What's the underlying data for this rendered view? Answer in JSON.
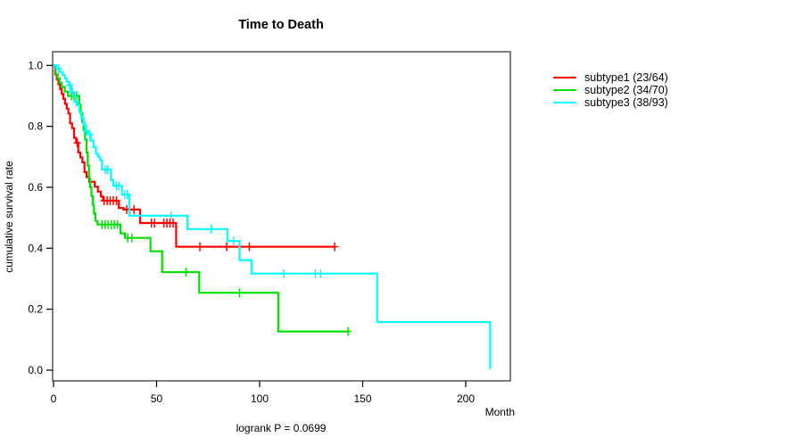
{
  "title": "Time to Death",
  "x_axis": {
    "label": "Month",
    "tick_labels": [
      "0",
      "50",
      "100",
      "150",
      "200"
    ],
    "tick_values": [
      0,
      50,
      100,
      150,
      200
    ]
  },
  "y_axis": {
    "label": "cumulative survival rate",
    "tick_labels": [
      "0.0",
      "0.2",
      "0.4",
      "0.6",
      "0.8",
      "1.0"
    ],
    "tick_values": [
      0,
      0.2,
      0.4,
      0.6,
      0.8,
      1.0
    ]
  },
  "footer": "logrank P = 0.0699",
  "legend": [
    {
      "label": "subtype1 (23/64)",
      "color": "#ff0000"
    },
    {
      "label": "subtype2 (34/70)",
      "color": "#00e100"
    },
    {
      "label": "subtype3 (38/93)",
      "color": "#00ffff"
    }
  ],
  "chart_data": {
    "type": "line",
    "variant": "kaplan-meier-step",
    "title": "Time to Death",
    "xlabel": "Month",
    "ylabel": "cumulative survival rate",
    "xlim": [
      0,
      221
    ],
    "ylim": [
      0,
      1.0
    ],
    "grid": false,
    "legend_position": "right-outside",
    "annotation": "logrank P = 0.0699",
    "series": [
      {
        "name": "subtype1 (23/64)",
        "color": "#ff0000",
        "steps": [
          [
            0,
            1.0
          ],
          [
            0.8,
            0.97
          ],
          [
            1.6,
            0.954
          ],
          [
            2.4,
            0.938
          ],
          [
            3.2,
            0.922
          ],
          [
            4,
            0.906
          ],
          [
            4.8,
            0.89
          ],
          [
            5.6,
            0.874
          ],
          [
            6.4,
            0.858
          ],
          [
            7.2,
            0.842
          ],
          [
            8,
            0.81
          ],
          [
            9,
            0.794
          ],
          [
            10,
            0.762
          ],
          [
            11,
            0.746
          ],
          [
            12,
            0.714
          ],
          [
            13,
            0.698
          ],
          [
            14,
            0.682
          ],
          [
            15,
            0.65
          ],
          [
            16,
            0.634
          ],
          [
            17.3,
            0.618
          ],
          [
            20,
            0.602
          ],
          [
            21.5,
            0.586
          ],
          [
            23,
            0.57
          ],
          [
            24,
            0.556
          ],
          [
            31.7,
            0.532
          ],
          [
            34,
            0.527
          ],
          [
            42,
            0.483
          ],
          [
            59.5,
            0.405
          ]
        ],
        "tail_end": 136.4,
        "censors": [
          [
            11.5,
            0.746
          ],
          [
            24.5,
            0.556
          ],
          [
            26,
            0.556
          ],
          [
            27.5,
            0.556
          ],
          [
            29,
            0.556
          ],
          [
            30.5,
            0.556
          ],
          [
            35.5,
            0.527
          ],
          [
            37,
            0.527
          ],
          [
            39,
            0.527
          ],
          [
            47.5,
            0.483
          ],
          [
            49,
            0.483
          ],
          [
            53.5,
            0.483
          ],
          [
            55,
            0.483
          ],
          [
            56.5,
            0.483
          ],
          [
            58,
            0.483
          ],
          [
            71,
            0.405
          ],
          [
            84,
            0.405
          ],
          [
            95,
            0.405
          ],
          [
            136.4,
            0.405
          ]
        ]
      },
      {
        "name": "subtype2 (34/70)",
        "color": "#00e100",
        "steps": [
          [
            0,
            1.0
          ],
          [
            1,
            0.971
          ],
          [
            2,
            0.957
          ],
          [
            3,
            0.943
          ],
          [
            4,
            0.929
          ],
          [
            5.5,
            0.914
          ],
          [
            7,
            0.9
          ],
          [
            12.5,
            0.871
          ],
          [
            13.2,
            0.843
          ],
          [
            13.9,
            0.814
          ],
          [
            14.6,
            0.786
          ],
          [
            15.3,
            0.757
          ],
          [
            16,
            0.714
          ],
          [
            16.6,
            0.671
          ],
          [
            17.2,
            0.629
          ],
          [
            17.8,
            0.6
          ],
          [
            18.4,
            0.571
          ],
          [
            19,
            0.543
          ],
          [
            19.6,
            0.514
          ],
          [
            20.3,
            0.49
          ],
          [
            21.3,
            0.478
          ],
          [
            32.5,
            0.449
          ],
          [
            34.6,
            0.434
          ],
          [
            47,
            0.39
          ],
          [
            52.7,
            0.322
          ],
          [
            70.7,
            0.254
          ],
          [
            109,
            0.127
          ]
        ],
        "tail_end": 142.9,
        "censors": [
          [
            8.7,
            0.9
          ],
          [
            10,
            0.9
          ],
          [
            11.2,
            0.9
          ],
          [
            23.5,
            0.478
          ],
          [
            25,
            0.478
          ],
          [
            26.5,
            0.478
          ],
          [
            28,
            0.478
          ],
          [
            29.5,
            0.478
          ],
          [
            31,
            0.478
          ],
          [
            36,
            0.434
          ],
          [
            38,
            0.434
          ],
          [
            64.2,
            0.322
          ],
          [
            90.2,
            0.254
          ],
          [
            142.9,
            0.127
          ]
        ]
      },
      {
        "name": "subtype3 (38/93)",
        "color": "#00ffff",
        "steps": [
          [
            0,
            1.0
          ],
          [
            1.5,
            0.989
          ],
          [
            3,
            0.978
          ],
          [
            4.5,
            0.968
          ],
          [
            5.5,
            0.957
          ],
          [
            6.5,
            0.946
          ],
          [
            7.5,
            0.935
          ],
          [
            8.5,
            0.913
          ],
          [
            9.5,
            0.902
          ],
          [
            10.5,
            0.88
          ],
          [
            11.5,
            0.87
          ],
          [
            12.5,
            0.848
          ],
          [
            13.5,
            0.827
          ],
          [
            14.5,
            0.806
          ],
          [
            15.5,
            0.785
          ],
          [
            16.5,
            0.774
          ],
          [
            18,
            0.753
          ],
          [
            19.5,
            0.732
          ],
          [
            20.5,
            0.71
          ],
          [
            21.5,
            0.7
          ],
          [
            22.5,
            0.689
          ],
          [
            23.5,
            0.658
          ],
          [
            27.8,
            0.624
          ],
          [
            29,
            0.605
          ],
          [
            33.2,
            0.576
          ],
          [
            36.8,
            0.507
          ],
          [
            64.9,
            0.463
          ],
          [
            84.4,
            0.424
          ],
          [
            90.2,
            0.361
          ],
          [
            96,
            0.317
          ],
          [
            157,
            0.158
          ],
          [
            211.8,
            0.004
          ]
        ],
        "tail_end": 211.8,
        "censors": [
          [
            2.5,
            0.989
          ],
          [
            7.8,
            0.935
          ],
          [
            9.2,
            0.913
          ],
          [
            11,
            0.88
          ],
          [
            16,
            0.785
          ],
          [
            17.5,
            0.774
          ],
          [
            25,
            0.658
          ],
          [
            26.3,
            0.658
          ],
          [
            30.5,
            0.605
          ],
          [
            31.8,
            0.605
          ],
          [
            34.5,
            0.576
          ],
          [
            35.8,
            0.576
          ],
          [
            57,
            0.507
          ],
          [
            76.5,
            0.463
          ],
          [
            87.3,
            0.424
          ],
          [
            111.6,
            0.317
          ],
          [
            127,
            0.317
          ],
          [
            129.6,
            0.317
          ]
        ]
      }
    ]
  }
}
